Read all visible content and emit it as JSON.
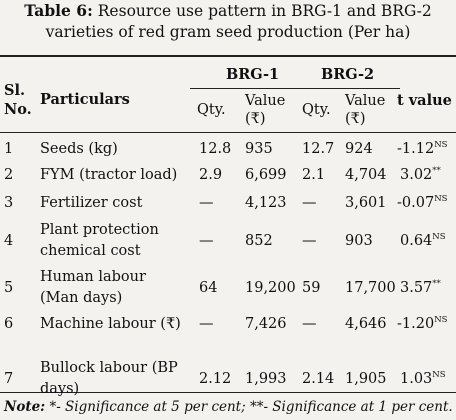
{
  "title": {
    "label": "Table 6:",
    "line1": "Resource use pattern in BRG-1 and BRG-2",
    "line2": "varieties of red gram seed production (Per ha)"
  },
  "header": {
    "sl": "Sl.",
    "no": "No.",
    "particulars": "Particulars",
    "group1": "BRG-1",
    "group2": "BRG-2",
    "qty": "Qty.",
    "value": "Value",
    "unit": "(₹)",
    "t_value": "t value"
  },
  "rows": [
    {
      "sl": "1",
      "part1": "Seeds (kg)",
      "part2": "",
      "q1": "12.8",
      "v1": "935",
      "q2": "12.7",
      "v2": "924",
      "t": "-1.12",
      "sig": "NS"
    },
    {
      "sl": "2",
      "part1": "FYM (tractor load)",
      "part2": "",
      "q1": "2.9",
      "v1": "6,699",
      "q2": "2.1",
      "v2": "4,704",
      "t": "3.02",
      "sig": "**"
    },
    {
      "sl": "3",
      "part1": "Fertilizer cost",
      "part2": "",
      "q1": "—",
      "v1": "4,123",
      "q2": "—",
      "v2": "3,601",
      "t": "-0.07",
      "sig": "NS"
    },
    {
      "sl": "4",
      "part1": "Plant protection",
      "part2": "chemical cost",
      "q1": "—",
      "v1": "852",
      "q2": "—",
      "v2": "903",
      "t": "0.64",
      "sig": "NS"
    },
    {
      "sl": "5",
      "part1": "Human labour",
      "part2": "(Man days)",
      "q1": "64",
      "v1": "19,200",
      "q2": "59",
      "v2": "17,700",
      "t": "3.57",
      "sig": "**"
    },
    {
      "sl": "6",
      "part1": "Machine labour (₹)",
      "part2": "",
      "q1": "—",
      "v1": "7,426",
      "q2": "—",
      "v2": "4,646",
      "t": "-1.20",
      "sig": "NS"
    },
    {
      "sl": "7",
      "part1": "Bullock labour (BP",
      "part2": "days)",
      "q1": "2.12",
      "v1": "1,993",
      "q2": "2.14",
      "v2": "1,905",
      "t": "1.03",
      "sig": "NS"
    }
  ],
  "note": {
    "label": "Note:",
    "text": " *- Significance at 5 per cent; **- Significance at 1 per cent."
  }
}
